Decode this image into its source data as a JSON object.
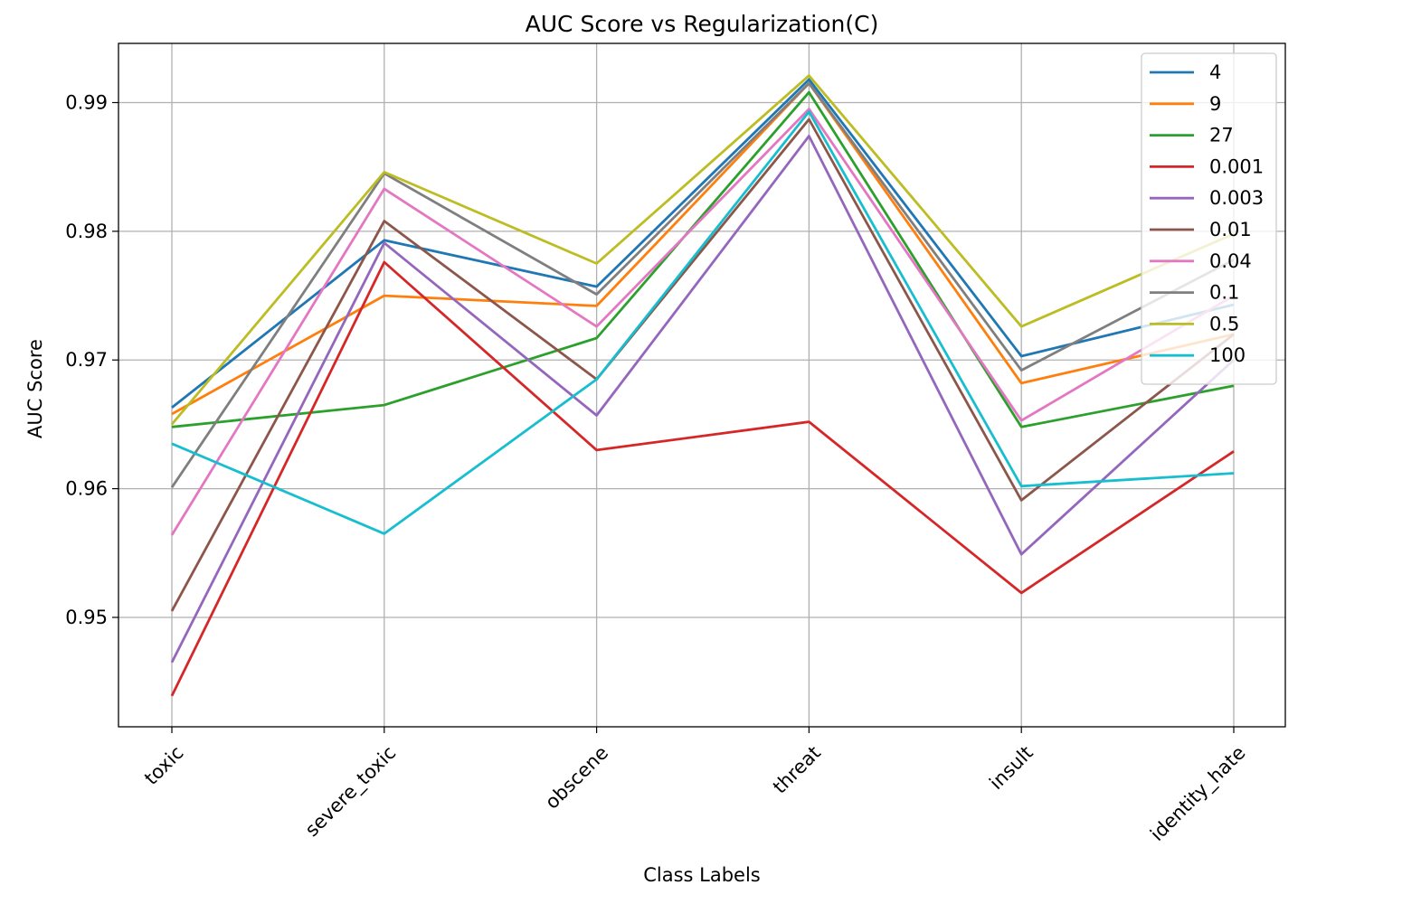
{
  "chart_data": {
    "type": "line",
    "title": "AUC Score vs Regularization(C)",
    "xlabel": "Class Labels",
    "ylabel": "AUC Score",
    "categories": [
      "toxic",
      "severe_toxic",
      "obscene",
      "threat",
      "insult",
      "identity_hate"
    ],
    "ylim": [
      0.9415,
      0.9946
    ],
    "yticks": [
      0.95,
      0.96,
      0.97,
      0.98,
      0.99
    ],
    "ytick_labels": [
      "0.95",
      "0.96",
      "0.97",
      "0.98",
      "0.99"
    ],
    "grid": true,
    "legend_position": "top-right",
    "series": [
      {
        "name": "4",
        "color": "#1f77b4",
        "values": [
          0.9663,
          0.9793,
          0.9757,
          0.9918,
          0.9703,
          0.9743
        ]
      },
      {
        "name": "9",
        "color": "#ff7f0e",
        "values": [
          0.9658,
          0.975,
          0.9742,
          0.9915,
          0.9682,
          0.972
        ]
      },
      {
        "name": "27",
        "color": "#2ca02c",
        "values": [
          0.9648,
          0.9665,
          0.9717,
          0.9908,
          0.9648,
          0.968
        ]
      },
      {
        "name": "0.001",
        "color": "#d62728",
        "values": [
          0.9439,
          0.9776,
          0.963,
          0.9652,
          0.9519,
          0.9629
        ]
      },
      {
        "name": "0.003",
        "color": "#9467bd",
        "values": [
          0.9465,
          0.9791,
          0.9657,
          0.9874,
          0.9549,
          0.97
        ]
      },
      {
        "name": "0.01",
        "color": "#8c564b",
        "values": [
          0.9505,
          0.9808,
          0.9685,
          0.9887,
          0.9591,
          0.972
        ]
      },
      {
        "name": "0.04",
        "color": "#e377c2",
        "values": [
          0.9564,
          0.9833,
          0.9726,
          0.9895,
          0.9653,
          0.975
        ]
      },
      {
        "name": "0.1",
        "color": "#7f7f7f",
        "values": [
          0.9601,
          0.9845,
          0.9751,
          0.9915,
          0.9692,
          0.9778
        ]
      },
      {
        "name": "0.5",
        "color": "#bcbd22",
        "values": [
          0.965,
          0.9846,
          0.9775,
          0.9921,
          0.9726,
          0.9798
        ]
      },
      {
        "name": "100",
        "color": "#17becf",
        "values": [
          0.9635,
          0.9565,
          0.9685,
          0.9893,
          0.9602,
          0.9612
        ]
      }
    ]
  }
}
